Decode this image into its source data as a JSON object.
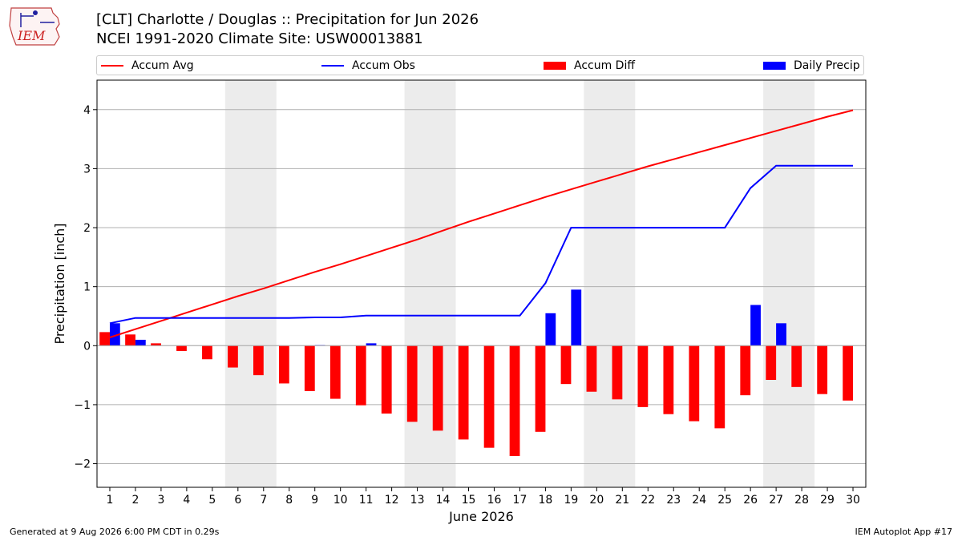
{
  "header": {
    "title_line1": "[CLT] Charlotte / Douglas :: Precipitation for Jun 2026",
    "title_line2": "NCEI 1991-2020 Climate Site: USW00013881"
  },
  "logo": {
    "text": "IEM",
    "icon": "iem-logo-icon"
  },
  "legend": {
    "accum_avg": "Accum Avg",
    "accum_obs": "Accum Obs",
    "accum_diff": "Accum Diff",
    "daily_precip": "Daily Precip"
  },
  "footer": {
    "generated": "Generated at 9 Aug 2026 6:00 PM CDT in 0.29s",
    "app": "IEM Autoplot App #17"
  },
  "colors": {
    "avg": "#ff0000",
    "obs": "#0000ff",
    "diff": "#ff0000",
    "daily": "#0000ff",
    "weekend": "#ececec",
    "grid": "#b0b0b0"
  },
  "chart_data": {
    "type": "bar",
    "xlabel": "June 2026",
    "ylabel": "Precipitation [inch]",
    "xlim": [
      0.5,
      30.5
    ],
    "ylim": [
      -2.4,
      4.5
    ],
    "yticks": [
      -2,
      -1,
      0,
      1,
      2,
      3,
      4
    ],
    "ytick_labels": [
      "−2",
      "−1",
      "0",
      "1",
      "2",
      "3",
      "4"
    ],
    "grid": "horizontal",
    "legend_position": "top",
    "x": [
      1,
      2,
      3,
      4,
      5,
      6,
      7,
      8,
      9,
      10,
      11,
      12,
      13,
      14,
      15,
      16,
      17,
      18,
      19,
      20,
      21,
      22,
      23,
      24,
      25,
      26,
      27,
      28,
      29,
      30
    ],
    "x_labels": [
      "1",
      "2",
      "3",
      "4",
      "5",
      "6",
      "7",
      "8",
      "9",
      "10",
      "11",
      "12",
      "13",
      "14",
      "15",
      "16",
      "17",
      "18",
      "19",
      "20",
      "21",
      "22",
      "23",
      "24",
      "25",
      "26",
      "27",
      "28",
      "29",
      "30"
    ],
    "weekend_spans": [
      [
        5.5,
        7.5
      ],
      [
        12.5,
        14.5
      ],
      [
        19.5,
        21.5
      ],
      [
        26.5,
        28.5
      ]
    ],
    "series": [
      {
        "name": "Accum Avg",
        "type": "line",
        "values": [
          0.14,
          0.28,
          0.42,
          0.56,
          0.7,
          0.84,
          0.97,
          1.11,
          1.25,
          1.38,
          1.52,
          1.66,
          1.8,
          1.95,
          2.1,
          2.24,
          2.38,
          2.52,
          2.65,
          2.78,
          2.91,
          3.04,
          3.16,
          3.28,
          3.4,
          3.52,
          3.64,
          3.76,
          3.88,
          3.99
        ]
      },
      {
        "name": "Accum Obs",
        "type": "line",
        "values": [
          0.38,
          0.47,
          0.47,
          0.47,
          0.47,
          0.47,
          0.47,
          0.47,
          0.48,
          0.48,
          0.51,
          0.51,
          0.51,
          0.51,
          0.51,
          0.51,
          0.51,
          1.06,
          2.0,
          2.0,
          2.0,
          2.0,
          2.0,
          2.0,
          2.0,
          2.67,
          3.05,
          3.05,
          3.05,
          3.05
        ]
      },
      {
        "name": "Accum Diff",
        "type": "bar",
        "values": [
          0.23,
          0.19,
          0.04,
          -0.09,
          -0.23,
          -0.37,
          -0.5,
          -0.64,
          -0.77,
          -0.9,
          -1.01,
          -1.15,
          -1.29,
          -1.44,
          -1.59,
          -1.73,
          -1.87,
          -1.46,
          -0.65,
          -0.78,
          -0.91,
          -1.04,
          -1.16,
          -1.28,
          -1.4,
          -0.84,
          -0.58,
          -0.7,
          -0.82,
          -0.93
        ]
      },
      {
        "name": "Daily Precip",
        "type": "bar",
        "values": [
          0.38,
          0.1,
          0.0,
          0.0,
          0.0,
          0.0,
          0.0,
          0.0,
          0.01,
          0.0,
          0.04,
          0.0,
          0.0,
          0.0,
          0.0,
          0.0,
          0.0,
          0.55,
          0.95,
          0.0,
          0.0,
          0.0,
          0.0,
          0.0,
          0.0,
          0.69,
          0.38,
          0.0,
          0.0,
          0.0
        ]
      }
    ]
  }
}
